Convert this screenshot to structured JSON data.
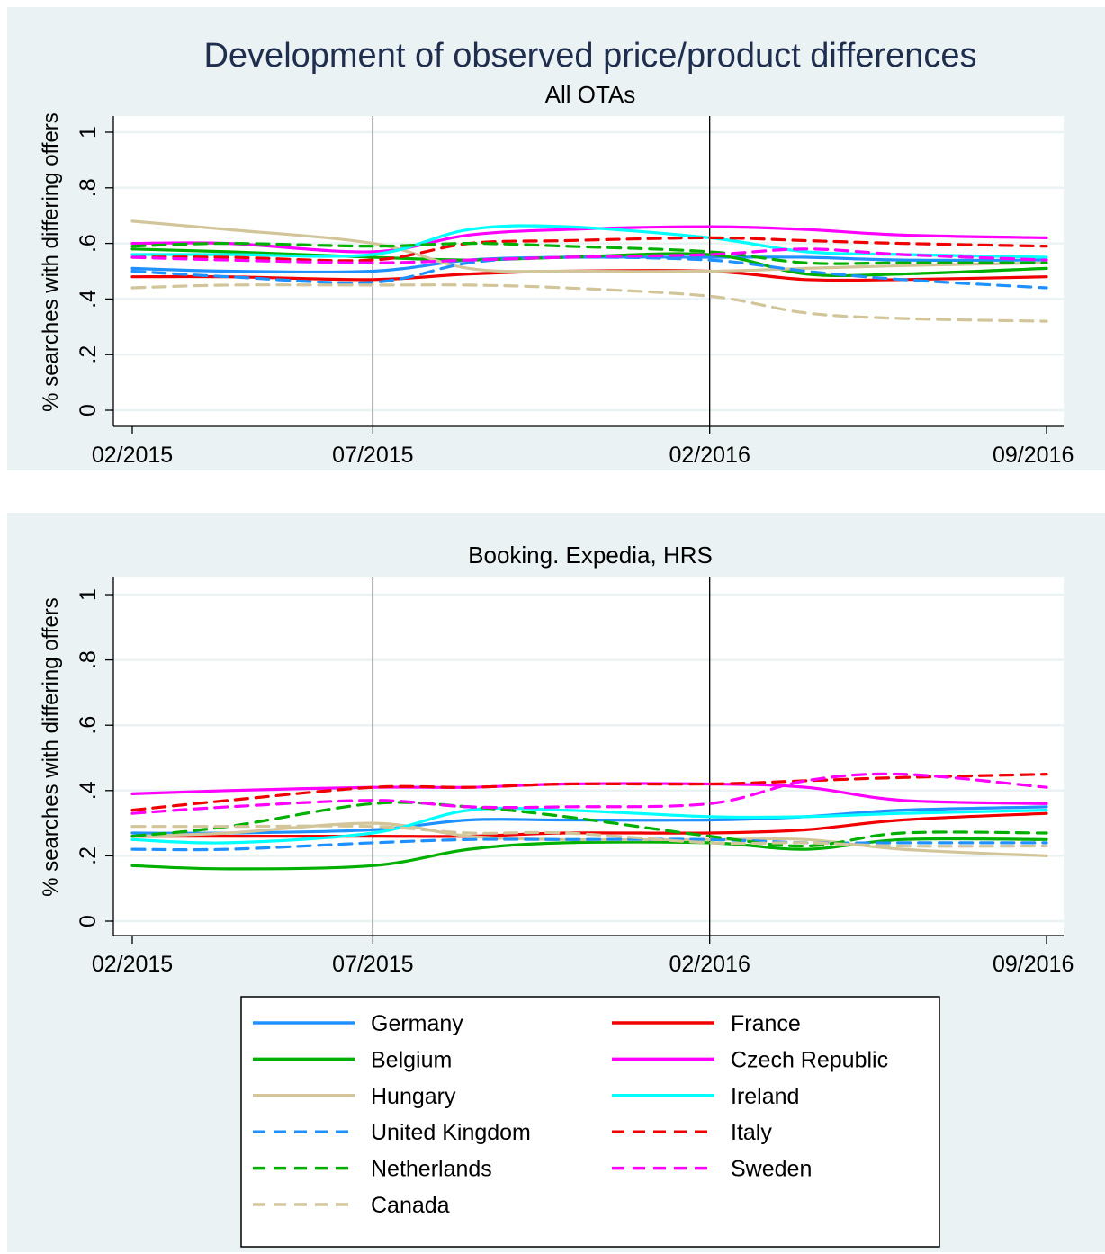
{
  "figure_title": "Development of observed price/product differences",
  "chart_data": [
    {
      "type": "line",
      "subtitle": "All OTAs",
      "ylabel": "% searches with differing offers",
      "xlabel": "",
      "x_ticks": [
        "02/2015",
        "07/2015",
        "02/2016",
        "09/2016"
      ],
      "y_ticks": [
        "0",
        ".2",
        ".4",
        ".6",
        ".8",
        "1"
      ],
      "ylim": [
        0,
        1
      ],
      "grid": true,
      "reference_lines_at": [
        "07/2015",
        "02/2016"
      ],
      "x": [
        "02/2015",
        "04/2015",
        "07/2015",
        "09/2015",
        "11/2015",
        "02/2016",
        "04/2016",
        "06/2016",
        "09/2016"
      ],
      "series": [
        {
          "name": "Germany",
          "values": [
            0.51,
            0.5,
            0.5,
            0.54,
            0.55,
            0.55,
            0.55,
            0.54,
            0.54
          ]
        },
        {
          "name": "France",
          "values": [
            0.48,
            0.48,
            0.47,
            0.49,
            0.5,
            0.5,
            0.47,
            0.47,
            0.48
          ]
        },
        {
          "name": "Belgium",
          "values": [
            0.58,
            0.57,
            0.55,
            0.54,
            0.55,
            0.56,
            0.49,
            0.49,
            0.51
          ]
        },
        {
          "name": "Czech Republic",
          "values": [
            0.6,
            0.6,
            0.57,
            0.63,
            0.65,
            0.66,
            0.65,
            0.63,
            0.62
          ]
        },
        {
          "name": "Hungary",
          "values": [
            0.68,
            0.65,
            0.6,
            0.51,
            0.5,
            0.5,
            0.51,
            0.52,
            0.53
          ]
        },
        {
          "name": "Ireland",
          "values": [
            0.56,
            0.56,
            0.56,
            0.65,
            0.66,
            0.62,
            0.57,
            0.56,
            0.55
          ]
        },
        {
          "name": "United Kingdom",
          "values": [
            0.5,
            0.48,
            0.46,
            0.53,
            0.55,
            0.54,
            0.5,
            0.47,
            0.44
          ]
        },
        {
          "name": "Italy",
          "values": [
            0.55,
            0.55,
            0.54,
            0.6,
            0.61,
            0.62,
            0.61,
            0.6,
            0.59
          ]
        },
        {
          "name": "Netherlands",
          "values": [
            0.59,
            0.6,
            0.59,
            0.6,
            0.59,
            0.57,
            0.53,
            0.53,
            0.53
          ]
        },
        {
          "name": "Sweden",
          "values": [
            0.55,
            0.54,
            0.53,
            0.54,
            0.55,
            0.56,
            0.58,
            0.56,
            0.54
          ]
        },
        {
          "name": "Canada",
          "values": [
            0.44,
            0.45,
            0.45,
            0.45,
            0.44,
            0.41,
            0.35,
            0.33,
            0.32
          ]
        }
      ]
    },
    {
      "type": "line",
      "subtitle": "Booking. Expedia, HRS",
      "ylabel": "% searches with differing offers",
      "xlabel": "",
      "x_ticks": [
        "02/2015",
        "07/2015",
        "02/2016",
        "09/2016"
      ],
      "y_ticks": [
        "0",
        ".2",
        ".4",
        ".6",
        ".8",
        "1"
      ],
      "ylim": [
        0,
        1
      ],
      "grid": true,
      "reference_lines_at": [
        "07/2015",
        "02/2016"
      ],
      "x": [
        "02/2015",
        "04/2015",
        "07/2015",
        "09/2015",
        "11/2015",
        "02/2016",
        "04/2016",
        "06/2016",
        "09/2016"
      ],
      "series": [
        {
          "name": "Germany",
          "values": [
            0.27,
            0.27,
            0.28,
            0.31,
            0.31,
            0.31,
            0.32,
            0.34,
            0.35
          ]
        },
        {
          "name": "France",
          "values": [
            0.26,
            0.26,
            0.26,
            0.26,
            0.27,
            0.27,
            0.28,
            0.31,
            0.33
          ]
        },
        {
          "name": "Belgium",
          "values": [
            0.17,
            0.16,
            0.17,
            0.22,
            0.24,
            0.24,
            0.22,
            0.25,
            0.25
          ]
        },
        {
          "name": "Czech Republic",
          "values": [
            0.39,
            0.4,
            0.41,
            0.41,
            0.42,
            0.42,
            0.41,
            0.37,
            0.36
          ]
        },
        {
          "name": "Hungary",
          "values": [
            0.26,
            0.27,
            0.3,
            0.26,
            0.25,
            0.25,
            0.25,
            0.22,
            0.2
          ]
        },
        {
          "name": "Ireland",
          "values": [
            0.25,
            0.24,
            0.27,
            0.34,
            0.34,
            0.32,
            0.32,
            0.33,
            0.34
          ]
        },
        {
          "name": "United Kingdom",
          "values": [
            0.22,
            0.22,
            0.24,
            0.25,
            0.25,
            0.25,
            0.24,
            0.24,
            0.24
          ]
        },
        {
          "name": "Italy",
          "values": [
            0.34,
            0.37,
            0.41,
            0.41,
            0.42,
            0.42,
            0.43,
            0.44,
            0.45
          ]
        },
        {
          "name": "Netherlands",
          "values": [
            0.26,
            0.29,
            0.36,
            0.35,
            0.32,
            0.26,
            0.23,
            0.27,
            0.27
          ]
        },
        {
          "name": "Sweden",
          "values": [
            0.33,
            0.35,
            0.37,
            0.35,
            0.35,
            0.36,
            0.43,
            0.45,
            0.41
          ]
        },
        {
          "name": "Canada",
          "values": [
            0.29,
            0.29,
            0.29,
            0.27,
            0.27,
            0.24,
            0.24,
            0.23,
            0.23
          ]
        }
      ]
    }
  ],
  "legend": {
    "placement": "bottom",
    "columns": [
      [
        "Germany",
        "Belgium",
        "Hungary",
        "United Kingdom",
        "Netherlands",
        "Canada"
      ],
      [
        "France",
        "Czech Republic",
        "Ireland",
        "Italy",
        "Sweden"
      ]
    ]
  },
  "series_styles": {
    "Germany": {
      "color": "#1e90ff",
      "dash": "solid"
    },
    "France": {
      "color": "#f00000",
      "dash": "solid"
    },
    "Belgium": {
      "color": "#00b000",
      "dash": "solid"
    },
    "Czech Republic": {
      "color": "#ff00ff",
      "dash": "solid"
    },
    "Hungary": {
      "color": "#d2c59a",
      "dash": "solid"
    },
    "Ireland": {
      "color": "#00ffff",
      "dash": "solid"
    },
    "United Kingdom": {
      "color": "#1e90ff",
      "dash": "dashed"
    },
    "Italy": {
      "color": "#f00000",
      "dash": "dashed"
    },
    "Netherlands": {
      "color": "#00b000",
      "dash": "dashed"
    },
    "Sweden": {
      "color": "#ff00ff",
      "dash": "dashed"
    },
    "Canada": {
      "color": "#d2c59a",
      "dash": "dashed"
    }
  },
  "colors": {
    "background": "#eaf2f3",
    "plot_area": "#ffffff",
    "gridline": "#eaf2f3",
    "title": "#1f2d4e"
  }
}
